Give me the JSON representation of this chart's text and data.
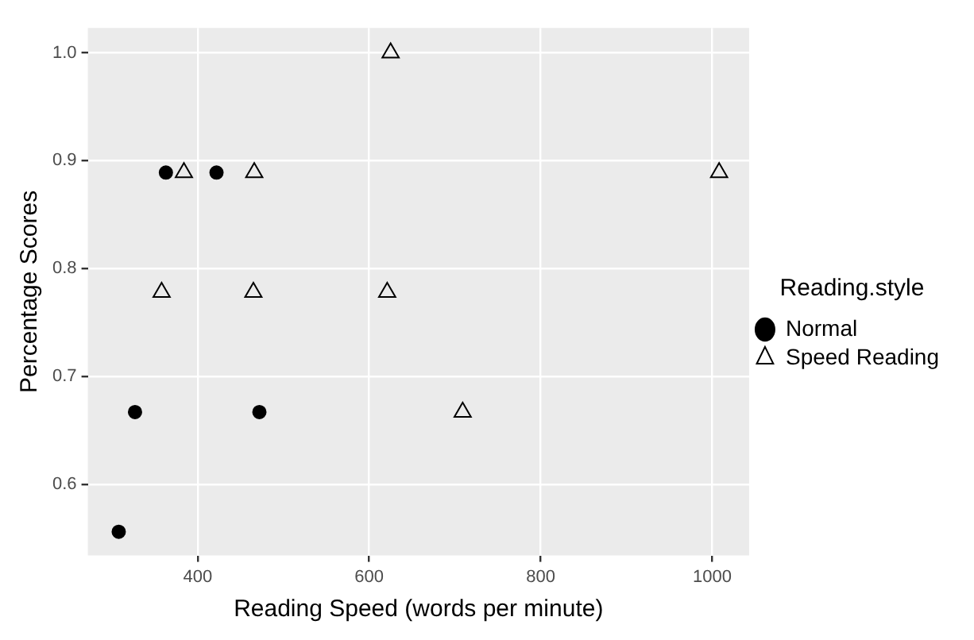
{
  "chart_data": {
    "type": "scatter",
    "xlabel": "Reading Speed (words per minute)",
    "ylabel": "Percentage Scores",
    "legend_title": "Reading.style",
    "legend": "right",
    "grid": true,
    "xlim": [
      272,
      1043
    ],
    "xticks": [
      400,
      600,
      800,
      1000
    ],
    "ylim": [
      0.534,
      1.023
    ],
    "yticks": [
      {
        "value": 0.6,
        "label": "0.6"
      },
      {
        "value": 0.7,
        "label": "0.7"
      },
      {
        "value": 0.8,
        "label": "0.8"
      },
      {
        "value": 0.9,
        "label": "0.9"
      },
      {
        "value": 1,
        "label": "1.0"
      }
    ],
    "series": [
      {
        "name": "Normal",
        "color": "#000000",
        "marker": "circle",
        "x": [
          363,
          422,
          327,
          472,
          308
        ],
        "values": [
          0.889,
          0.889,
          0.667,
          0.667,
          0.556
        ]
      },
      {
        "name": "Speed Reading",
        "color": "#000000",
        "marker": "triangle",
        "x": [
          384,
          466,
          1008,
          625,
          358,
          465,
          621,
          709
        ],
        "values": [
          0.889,
          0.889,
          0.889,
          1.0,
          0.778,
          0.778,
          0.778,
          0.667
        ]
      }
    ]
  }
}
